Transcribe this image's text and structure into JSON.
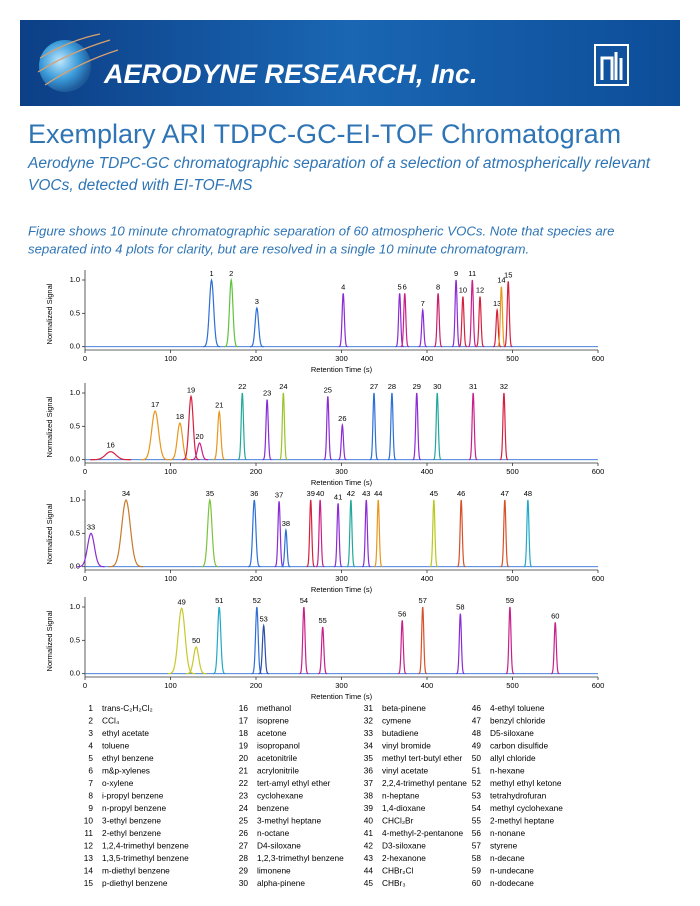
{
  "header": {
    "company": "AERODYNE RESEARCH, Inc."
  },
  "title": "Exemplary ARI TDPC-GC-EI-TOF Chromatogram",
  "subtitle": [
    "Aerodyne TDPC-GC chromatographic separation of a selection of atmospherically relevant",
    "VOCs, detected with EI-TOF-MS"
  ],
  "description": [
    "Figure shows 10 minute chromatographic separation of 60 atmospheric VOCs. Note that species are",
    "separated into 4 plots for clarity, but are resolved in a single 10 minute chromatogram."
  ],
  "figure": {
    "xlabel": "Retention Time (s)",
    "ylabel": "Normalized Signal",
    "xlim": [
      0,
      600
    ],
    "ylim": [
      -0.05,
      1.15
    ],
    "xticks": [
      0,
      100,
      200,
      300,
      400,
      500,
      600
    ],
    "yticks": [
      {
        "value": 0,
        "label": "0.0"
      },
      {
        "value": 0.5,
        "label": "0.5"
      },
      {
        "value": 1,
        "label": "1.0"
      }
    ],
    "plots": [
      {
        "peaks": [
          {
            "id": 1,
            "rt": 148,
            "height": 1.0,
            "width": 2.5,
            "color": "#2e6fd6"
          },
          {
            "id": 2,
            "rt": 171,
            "height": 1.0,
            "width": 2,
            "color": "#5fc33c"
          },
          {
            "id": 3,
            "rt": 201,
            "height": 0.58,
            "width": 2,
            "color": "#2e6fd6"
          },
          {
            "id": 4,
            "rt": 302,
            "height": 0.8,
            "width": 1.3,
            "color": "#8a2bd6"
          },
          {
            "id": 5,
            "rt": 368,
            "height": 0.8,
            "width": 1.2,
            "color": "#8a2bd6"
          },
          {
            "id": 6,
            "rt": 374,
            "height": 0.8,
            "width": 1.2,
            "color": "#c8208a"
          },
          {
            "id": 7,
            "rt": 395,
            "height": 0.55,
            "width": 1.2,
            "color": "#8a2bd6"
          },
          {
            "id": 8,
            "rt": 413,
            "height": 0.8,
            "width": 1.2,
            "color": "#c8206a"
          },
          {
            "id": 9,
            "rt": 434,
            "height": 1.0,
            "width": 1.2,
            "color": "#8a2bd6"
          },
          {
            "id": 10,
            "rt": 442,
            "height": 0.75,
            "width": 1.2,
            "color": "#d62040"
          },
          {
            "id": 11,
            "rt": 453,
            "height": 1.0,
            "width": 1.2,
            "color": "#c8208a"
          },
          {
            "id": 12,
            "rt": 462,
            "height": 0.75,
            "width": 1.2,
            "color": "#d62040"
          },
          {
            "id": 13,
            "rt": 482,
            "height": 0.55,
            "width": 1.2,
            "color": "#d62040"
          },
          {
            "id": 14,
            "rt": 487,
            "height": 0.9,
            "width": 1.2,
            "color": "#e8961e"
          },
          {
            "id": 15,
            "rt": 495,
            "height": 0.98,
            "width": 1.2,
            "color": "#d62040"
          }
        ]
      },
      {
        "peaks": [
          {
            "id": 16,
            "rt": 30,
            "height": 0.12,
            "width": 6,
            "color": "#d62040"
          },
          {
            "id": 17,
            "rt": 82,
            "height": 0.73,
            "width": 4,
            "color": "#e8961e"
          },
          {
            "id": 18,
            "rt": 111,
            "height": 0.55,
            "width": 3,
            "color": "#e8961e"
          },
          {
            "id": 19,
            "rt": 124,
            "height": 0.95,
            "width": 2.5,
            "color": "#d62040"
          },
          {
            "id": 20,
            "rt": 134,
            "height": 0.25,
            "width": 2.5,
            "color": "#c8208a"
          },
          {
            "id": 21,
            "rt": 157,
            "height": 0.72,
            "width": 1.8,
            "color": "#e8961e"
          },
          {
            "id": 22,
            "rt": 184,
            "height": 1.0,
            "width": 1.3,
            "color": "#22a89a"
          },
          {
            "id": 23,
            "rt": 213,
            "height": 0.9,
            "width": 1.3,
            "color": "#8a2bd6"
          },
          {
            "id": 24,
            "rt": 232,
            "height": 1.0,
            "width": 1.2,
            "color": "#9ac32c"
          },
          {
            "id": 25,
            "rt": 284,
            "height": 0.95,
            "width": 1.2,
            "color": "#8a2bd6"
          },
          {
            "id": 26,
            "rt": 301,
            "height": 0.52,
            "width": 1.2,
            "color": "#8a2bd6"
          },
          {
            "id": 27,
            "rt": 338,
            "height": 1.0,
            "width": 1.2,
            "color": "#2e6fd6"
          },
          {
            "id": 28,
            "rt": 359,
            "height": 1.0,
            "width": 1.2,
            "color": "#2e6fd6"
          },
          {
            "id": 29,
            "rt": 388,
            "height": 1.0,
            "width": 1.2,
            "color": "#8a2bd6"
          },
          {
            "id": 30,
            "rt": 412,
            "height": 1.0,
            "width": 1.2,
            "color": "#22a89a"
          },
          {
            "id": 31,
            "rt": 454,
            "height": 1.0,
            "width": 1.2,
            "color": "#c8208a"
          },
          {
            "id": 32,
            "rt": 490,
            "height": 1.0,
            "width": 1.2,
            "color": "#d62040"
          }
        ]
      },
      {
        "peaks": [
          {
            "id": 33,
            "rt": 7,
            "height": 0.5,
            "width": 4,
            "color": "#8a2bd6"
          },
          {
            "id": 34,
            "rt": 48,
            "height": 1.0,
            "width": 5,
            "color": "#c87a2a"
          },
          {
            "id": 35,
            "rt": 146,
            "height": 1.0,
            "width": 2.5,
            "color": "#7ac33c"
          },
          {
            "id": 36,
            "rt": 198,
            "height": 1.0,
            "width": 1.8,
            "color": "#2e6fd6"
          },
          {
            "id": 37,
            "rt": 227,
            "height": 0.98,
            "width": 1.3,
            "color": "#8a2bd6"
          },
          {
            "id": 38,
            "rt": 235,
            "height": 0.55,
            "width": 1.3,
            "color": "#2e6fd6"
          },
          {
            "id": 39,
            "rt": 264,
            "height": 1.0,
            "width": 1.2,
            "color": "#d62040"
          },
          {
            "id": 40,
            "rt": 275,
            "height": 1.0,
            "width": 1.2,
            "color": "#c8208a"
          },
          {
            "id": 41,
            "rt": 296,
            "height": 0.95,
            "width": 1.2,
            "color": "#8a2bd6"
          },
          {
            "id": 42,
            "rt": 311,
            "height": 1.0,
            "width": 1.2,
            "color": "#22a89a"
          },
          {
            "id": 43,
            "rt": 329,
            "height": 1.0,
            "width": 1.2,
            "color": "#8a2bd6"
          },
          {
            "id": 44,
            "rt": 343,
            "height": 1.0,
            "width": 1.2,
            "color": "#e8961e"
          },
          {
            "id": 45,
            "rt": 408,
            "height": 1.0,
            "width": 1.2,
            "color": "#b8c81e"
          },
          {
            "id": 46,
            "rt": 440,
            "height": 1.0,
            "width": 1.2,
            "color": "#d6502a"
          },
          {
            "id": 47,
            "rt": 491,
            "height": 1.0,
            "width": 1.2,
            "color": "#d6502a"
          },
          {
            "id": 48,
            "rt": 518,
            "height": 1.0,
            "width": 1.2,
            "color": "#22a8c8"
          }
        ]
      },
      {
        "peaks": [
          {
            "id": 49,
            "rt": 113,
            "height": 0.98,
            "width": 4,
            "color": "#c8c82a"
          },
          {
            "id": 50,
            "rt": 130,
            "height": 0.4,
            "width": 3,
            "color": "#c8c82a"
          },
          {
            "id": 51,
            "rt": 157,
            "height": 1.0,
            "width": 1.8,
            "color": "#22a8c8"
          },
          {
            "id": 52,
            "rt": 201,
            "height": 1.0,
            "width": 1.5,
            "color": "#2e6fd6"
          },
          {
            "id": 53,
            "rt": 209,
            "height": 0.72,
            "width": 1.5,
            "color": "#2e4fa6"
          },
          {
            "id": 54,
            "rt": 256,
            "height": 1.0,
            "width": 1.3,
            "color": "#c8208a"
          },
          {
            "id": 55,
            "rt": 278,
            "height": 0.7,
            "width": 1.3,
            "color": "#c8208a"
          },
          {
            "id": 56,
            "rt": 371,
            "height": 0.8,
            "width": 1.2,
            "color": "#c8208a"
          },
          {
            "id": 57,
            "rt": 395,
            "height": 1.0,
            "width": 1.2,
            "color": "#d6502a"
          },
          {
            "id": 58,
            "rt": 439,
            "height": 0.9,
            "width": 1.2,
            "color": "#8a2bd6"
          },
          {
            "id": 59,
            "rt": 497,
            "height": 1.0,
            "width": 1.2,
            "color": "#c8208a"
          },
          {
            "id": 60,
            "rt": 550,
            "height": 0.77,
            "width": 1.2,
            "color": "#c8208a"
          }
        ]
      }
    ]
  },
  "legend": [
    {
      "id": 1,
      "name": "trans-C₂H₂Cl₂"
    },
    {
      "id": 2,
      "name": "CCl₄"
    },
    {
      "id": 3,
      "name": "ethyl acetate"
    },
    {
      "id": 4,
      "name": "toluene"
    },
    {
      "id": 5,
      "name": "ethyl benzene"
    },
    {
      "id": 6,
      "name": "m&p-xylenes"
    },
    {
      "id": 7,
      "name": "o-xylene"
    },
    {
      "id": 8,
      "name": "i-propyl benzene"
    },
    {
      "id": 9,
      "name": "n-propyl benzene"
    },
    {
      "id": 10,
      "name": "3-ethyl benzene"
    },
    {
      "id": 11,
      "name": "2-ethyl benzene"
    },
    {
      "id": 12,
      "name": "1,2,4-trimethyl benzene"
    },
    {
      "id": 13,
      "name": "1,3,5-trimethyl benzene"
    },
    {
      "id": 14,
      "name": "m-diethyl benzene"
    },
    {
      "id": 15,
      "name": "p-diethyl benzene"
    },
    {
      "id": 16,
      "name": "methanol"
    },
    {
      "id": 17,
      "name": "isoprene"
    },
    {
      "id": 18,
      "name": "acetone"
    },
    {
      "id": 19,
      "name": "isopropanol"
    },
    {
      "id": 20,
      "name": "acetonitrile"
    },
    {
      "id": 21,
      "name": "acrylonitrile"
    },
    {
      "id": 22,
      "name": "tert-amyl ethyl ether"
    },
    {
      "id": 23,
      "name": "cyclohexane"
    },
    {
      "id": 24,
      "name": "benzene"
    },
    {
      "id": 25,
      "name": "3-methyl heptane"
    },
    {
      "id": 26,
      "name": "n-octane"
    },
    {
      "id": 27,
      "name": "D4-siloxane"
    },
    {
      "id": 28,
      "name": "1,2,3-trimethyl benzene"
    },
    {
      "id": 29,
      "name": "limonene"
    },
    {
      "id": 30,
      "name": "alpha-pinene"
    },
    {
      "id": 31,
      "name": "beta-pinene"
    },
    {
      "id": 32,
      "name": "cymene"
    },
    {
      "id": 33,
      "name": "butadiene"
    },
    {
      "id": 34,
      "name": "vinyl bromide"
    },
    {
      "id": 35,
      "name": "methyl tert-butyl ether"
    },
    {
      "id": 36,
      "name": "vinyl acetate"
    },
    {
      "id": 37,
      "name": "2,2,4-trimethyl pentane"
    },
    {
      "id": 38,
      "name": "n-heptane"
    },
    {
      "id": 39,
      "name": "1,4-dioxane"
    },
    {
      "id": 40,
      "name": "CHCl₂Br"
    },
    {
      "id": 41,
      "name": "4-methyl-2-pentanone"
    },
    {
      "id": 42,
      "name": "D3-siloxane"
    },
    {
      "id": 43,
      "name": "2-hexanone"
    },
    {
      "id": 44,
      "name": "CHBr₂Cl"
    },
    {
      "id": 45,
      "name": "CHBr₃"
    },
    {
      "id": 46,
      "name": "4-ethyl toluene"
    },
    {
      "id": 47,
      "name": "benzyl chloride"
    },
    {
      "id": 48,
      "name": "D5-siloxane"
    },
    {
      "id": 49,
      "name": "carbon disulfide"
    },
    {
      "id": 50,
      "name": "allyl chloride"
    },
    {
      "id": 51,
      "name": "n-hexane"
    },
    {
      "id": 52,
      "name": "methyl ethyl ketone"
    },
    {
      "id": 53,
      "name": "tetrahydrofuran"
    },
    {
      "id": 54,
      "name": "methyl cyclohexane"
    },
    {
      "id": 55,
      "name": "2-methyl heptane"
    },
    {
      "id": 56,
      "name": "n-nonane"
    },
    {
      "id": 57,
      "name": "styrene"
    },
    {
      "id": 58,
      "name": "n-decane"
    },
    {
      "id": 59,
      "name": "n-undecane"
    },
    {
      "id": 60,
      "name": "n-dodecane"
    }
  ]
}
